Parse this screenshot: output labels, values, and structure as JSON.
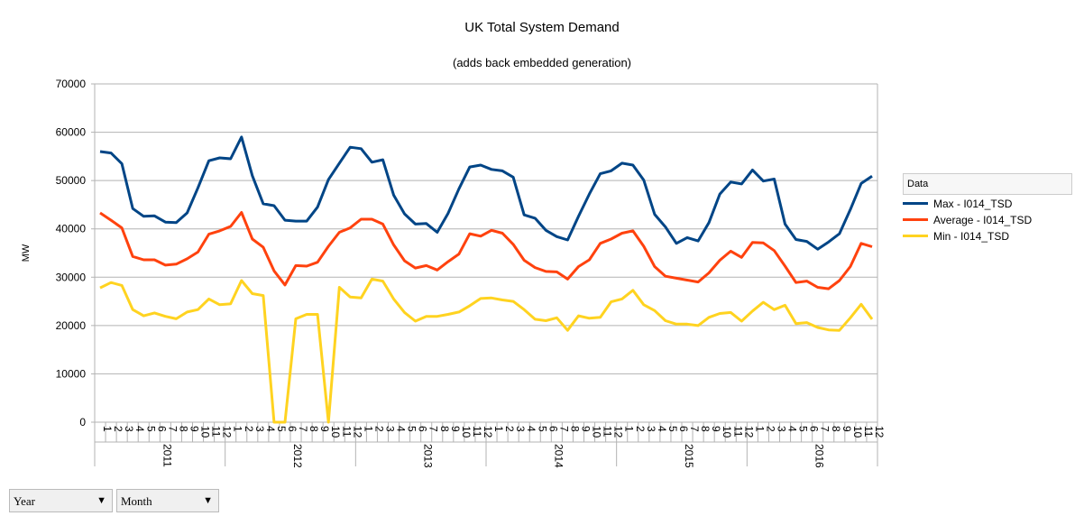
{
  "chart_data": {
    "type": "line",
    "title": "UK Total System Demand",
    "subtitle": "(adds back embedded generation)",
    "ylabel": "MW",
    "ylim": [
      0,
      70000
    ],
    "yticks": [
      0,
      10000,
      20000,
      30000,
      40000,
      50000,
      60000,
      70000
    ],
    "grid": true,
    "legend_placement": "right",
    "legend_title": "Data",
    "years": [
      "2011",
      "2012",
      "2013",
      "2014",
      "2015",
      "2016"
    ],
    "months": [
      "1",
      "2",
      "3",
      "4",
      "5",
      "6",
      "7",
      "8",
      "9",
      "10",
      "11",
      "12"
    ],
    "series": [
      {
        "name": "Max - I014_TSD",
        "color": "#004586",
        "values": [
          56000,
          55700,
          53500,
          44200,
          42600,
          42700,
          41400,
          41300,
          43300,
          48500,
          54100,
          54700,
          54500,
          59000,
          51000,
          45200,
          44800,
          41800,
          41600,
          41600,
          44500,
          50200,
          53600,
          56900,
          56600,
          53800,
          54300,
          47000,
          43100,
          41000,
          41100,
          39300,
          43200,
          48300,
          52800,
          53200,
          52300,
          52000,
          50700,
          42900,
          42200,
          39700,
          38400,
          37700,
          42600,
          47200,
          51400,
          52000,
          53600,
          53200,
          50100,
          43000,
          40400,
          37000,
          38200,
          37500,
          41300,
          47200,
          49700,
          49300,
          52200,
          49900,
          50300,
          41000,
          37800,
          37400,
          35800,
          37300,
          39000,
          44000,
          49400,
          50900
        ]
      },
      {
        "name": "Average - I014_TSD",
        "color": "#ff420e",
        "values": [
          43300,
          41800,
          40200,
          34300,
          33600,
          33600,
          32500,
          32700,
          33800,
          35200,
          38900,
          39600,
          40500,
          43400,
          37900,
          36200,
          31300,
          28400,
          32400,
          32300,
          33100,
          36400,
          39300,
          40200,
          42000,
          42000,
          41000,
          36700,
          33400,
          31900,
          32400,
          31500,
          33200,
          34800,
          39000,
          38500,
          39700,
          39100,
          36800,
          33500,
          32000,
          31200,
          31100,
          29600,
          32200,
          33600,
          37000,
          37900,
          39100,
          39600,
          36400,
          32200,
          30200,
          29800,
          29400,
          29000,
          30900,
          33500,
          35400,
          34100,
          37200,
          37100,
          35500,
          32300,
          28900,
          29200,
          27900,
          27600,
          29300,
          32200,
          37000,
          36300
        ]
      },
      {
        "name": "Min - I014_TSD",
        "color": "#ffd320",
        "values": [
          27800,
          28900,
          28300,
          23300,
          22000,
          22600,
          21900,
          21400,
          22800,
          23300,
          25500,
          24300,
          24500,
          29300,
          26600,
          26200,
          0,
          0,
          21400,
          22300,
          22300,
          0,
          27900,
          25900,
          25700,
          29600,
          29200,
          25500,
          22700,
          20900,
          21900,
          21900,
          22300,
          22800,
          24100,
          25600,
          25700,
          25300,
          25000,
          23300,
          21300,
          21000,
          21600,
          19000,
          22000,
          21500,
          21700,
          24900,
          25500,
          27300,
          24300,
          23100,
          21000,
          20300,
          20300,
          20000,
          21700,
          22500,
          22700,
          20900,
          23000,
          24800,
          23300,
          24200,
          20400,
          20600,
          19600,
          19100,
          19000,
          21600,
          24400,
          21300
        ]
      }
    ]
  },
  "controls": {
    "year_label": "Year",
    "month_label": "Month",
    "dropdown_arrow": "▼"
  }
}
